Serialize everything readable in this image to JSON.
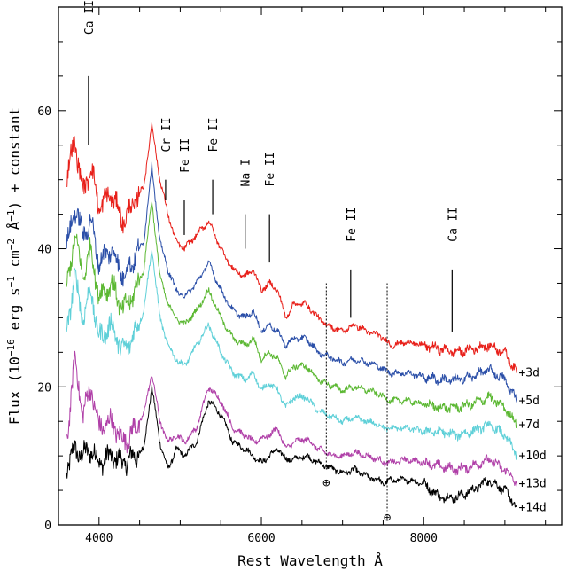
{
  "chart_data": {
    "type": "line",
    "title": "",
    "xlabel": "Rest Wavelength Å",
    "ylabel": "Flux (10^-16 erg s^-1 cm^-2 Å^-1) + constant",
    "ylabel_parts": {
      "pre": "Flux (10",
      "exp1": "−16",
      "mid1": " erg s",
      "exp2": "−1",
      "mid2": " cm",
      "exp3": "−2",
      "mid3": " Å",
      "exp4": "−1",
      "post": ") + constant"
    },
    "xlim": [
      3500,
      9700
    ],
    "ylim": [
      0,
      75
    ],
    "xticks": [
      4000,
      6000,
      8000
    ],
    "xtick_labels": [
      "4000",
      "6000",
      "8000"
    ],
    "yticks": [
      0,
      20,
      40,
      60
    ],
    "ytick_labels": [
      "0",
      "20",
      "40",
      "60"
    ],
    "grid": false,
    "series_anchor_x": [
      3600,
      3700,
      3800,
      3900,
      4000,
      4150,
      4300,
      4450,
      4550,
      4650,
      4750,
      4850,
      4950,
      5050,
      5200,
      5350,
      5500,
      5650,
      5800,
      5900,
      6000,
      6100,
      6200,
      6300,
      6400,
      6550,
      6700,
      6800,
      6900,
      7000,
      7150,
      7300,
      7450,
      7500,
      7600,
      7800,
      8000,
      8200,
      8400,
      8600,
      8800,
      9000,
      9150
    ],
    "series": [
      {
        "label": "+3d",
        "color": "#e8201a",
        "y": [
          50,
          56,
          48,
          52,
          46,
          48,
          44,
          47,
          49,
          58,
          50,
          45,
          41,
          40,
          42,
          44,
          40,
          37,
          36,
          37,
          34,
          35,
          34,
          30,
          32,
          32,
          30,
          29,
          28.5,
          28,
          29,
          28,
          27.5,
          27,
          26,
          26.5,
          26,
          25.5,
          25,
          25.5,
          26,
          25,
          22
        ]
      },
      {
        "label": "+5d",
        "color": "#2b4fa8",
        "y": [
          40,
          46,
          42,
          44,
          38,
          40,
          36,
          39,
          41,
          52,
          41,
          37,
          34,
          33,
          35,
          38,
          34,
          31,
          30,
          31,
          28,
          29,
          28,
          26,
          27,
          27,
          25,
          24.5,
          24,
          23.5,
          24,
          23.5,
          23,
          22.5,
          22,
          22,
          21.5,
          21,
          21,
          21.5,
          22.5,
          21,
          18
        ]
      },
      {
        "label": "+7d",
        "color": "#5cb833",
        "y": [
          34,
          42,
          36,
          40,
          33,
          35,
          31,
          34,
          37,
          47,
          36,
          32,
          30,
          29,
          31,
          34,
          30,
          27,
          26,
          27,
          24,
          25,
          24,
          21.5,
          23,
          23,
          21,
          20.5,
          20,
          19.5,
          20,
          19.5,
          19,
          18.5,
          18,
          18,
          17.5,
          17,
          17,
          17.5,
          18.5,
          17,
          14.5
        ]
      },
      {
        "label": "+10d",
        "color": "#5fd0d8",
        "y": [
          28,
          36,
          30,
          34,
          27,
          29,
          25,
          28,
          31,
          40,
          30,
          26,
          24,
          23,
          26,
          29,
          25,
          22,
          21,
          22,
          19.5,
          20.5,
          19.5,
          17,
          18.5,
          18.5,
          16.5,
          16,
          15.5,
          15,
          15.5,
          15,
          14.5,
          14,
          14,
          14,
          13.5,
          13.5,
          13,
          13.5,
          14.5,
          13,
          10
        ]
      },
      {
        "label": "+13d",
        "color": "#b040a8",
        "y": [
          12,
          24,
          16,
          20,
          14,
          15,
          12,
          14,
          16,
          22,
          15,
          12,
          13,
          12,
          14,
          20,
          18,
          14,
          13,
          12,
          12.5,
          13,
          14,
          11,
          12,
          12.5,
          11,
          10.5,
          10,
          10,
          10.5,
          10,
          9.5,
          9,
          9,
          9.5,
          9,
          8.5,
          8,
          8.5,
          9.5,
          8,
          6
        ]
      },
      {
        "label": "+14d",
        "color": "#000000",
        "y": [
          8,
          11,
          10,
          11,
          9,
          10,
          9,
          10,
          11,
          20,
          12,
          8,
          11,
          10,
          12,
          18,
          16,
          12,
          11,
          10,
          9,
          10,
          11,
          9.5,
          9.5,
          10,
          9,
          8.5,
          8,
          7.5,
          8,
          7,
          6.5,
          6,
          6.5,
          6.5,
          6,
          4,
          4,
          5,
          6.5,
          5,
          2.5
        ]
      }
    ],
    "line_ids": [
      {
        "text": "Ca II",
        "x": 3870,
        "y0": 55,
        "y1": 65,
        "labely": 71
      },
      {
        "text": "Cr II",
        "x": 4820,
        "y0": 47,
        "y1": 50,
        "labely": 54
      },
      {
        "text": "Fe II",
        "x": 5050,
        "y0": 42,
        "y1": 47,
        "labely": 51
      },
      {
        "text": "Fe II",
        "x": 5400,
        "y0": 45,
        "y1": 50,
        "labely": 54
      },
      {
        "text": "Na I",
        "x": 5800,
        "y0": 40,
        "y1": 45,
        "labely": 49
      },
      {
        "text": "Fe II",
        "x": 6100,
        "y0": 38,
        "y1": 45,
        "labely": 49
      },
      {
        "text": "Fe II",
        "x": 7100,
        "y0": 30,
        "y1": 37,
        "labely": 41
      },
      {
        "text": "Ca II",
        "x": 8350,
        "y0": 28,
        "y1": 37,
        "labely": 41
      }
    ],
    "telluric": [
      {
        "x": 6800,
        "y_top": 35,
        "y_bottom": 8,
        "marker_y": 5.5
      },
      {
        "x": 7550,
        "y_top": 35,
        "y_bottom": 2,
        "marker_y": 0.5
      }
    ],
    "telluric_symbol": "⊕"
  }
}
